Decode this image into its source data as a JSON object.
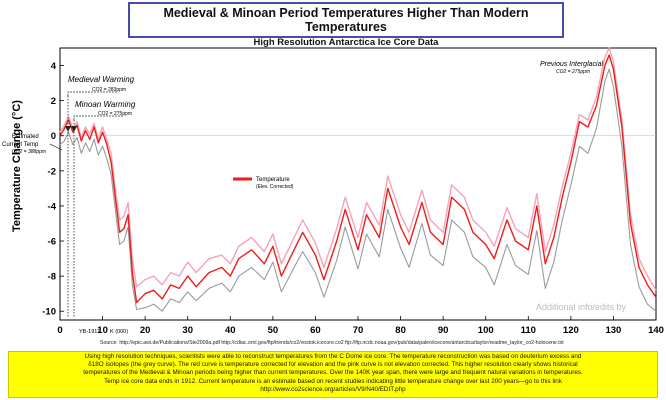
{
  "header": {
    "title": "Medieval & Minoan Period Temperatures Higher Than Modern Temperatures",
    "subtitle": "High Resolution Antarctica Ice Core Data"
  },
  "annotations": {
    "medieval_label": "Medieval Warming",
    "medieval_co2": "CO2 = 283ppm",
    "minoan_label": "Minoan Warming",
    "minoan_co2": "CO2 = 275ppm",
    "estimated_line1": "Estimated",
    "estimated_line2": "Current Temp",
    "estimated_co2": "CO2 = 388ppm",
    "interglacial_label": "Previous Interglacial",
    "interglacial_co2": "CO2 = 275ppm",
    "year_1912": "YB-1912",
    "x_unit": "K (000)"
  },
  "source_text": "Source: http://epic.awi.de/Publications/Ste2009a.pdf   http://cdiac.ornl.gov/ftp/trends/co2/vostok.icecore.co2   ftp://ftp.ncdc.noaa.gov/pub/data/paleo/icecore/antarctica/taylor/readme_taylor_co2-holocene.txt",
  "watermark": "Additional info/edits by",
  "caption": {
    "line1": "Using high resolution techniques, scientists were able to reconstruct temperatures from the C Dome ice core. The temperature reconstruction was based on deuterium excess and",
    "line2": "δ18O isotopes (the grey curve). The red curve is temperature corrected for elevation and the pink curve is not elevation corrected. This higher resolution clearly shows historical",
    "line3": "temperatures of the Medieval & Minoan periods being higher than current temperatures. Over the 140K year span, there were large and frequent natural variations in temperatures.",
    "line4": "Temp ice core data ends in 1912. Current temperature is an estimate based on recent studies indicating little temperature change over last 200 years—go to this link",
    "line5": "http://www.co2science.org/articles/V9/N40/EDIT.php"
  },
  "colors": {
    "red": "#ee1c1c",
    "pink": "#f5a3b8",
    "grey": "#9a9a9a"
  },
  "chart_data": {
    "type": "line",
    "title": "",
    "xlabel": "",
    "ylabel": "Temperature Change (°C)",
    "xlim": [
      0,
      140
    ],
    "ylim": [
      -10.5,
      5
    ],
    "xticks": [
      0,
      10,
      20,
      30,
      40,
      50,
      60,
      70,
      80,
      90,
      100,
      110,
      120,
      130,
      140
    ],
    "yticks": [
      4,
      2,
      0,
      -2,
      -4,
      -6,
      -8,
      -10
    ],
    "grid": false,
    "legend": {
      "position": "center-left",
      "entries": [
        {
          "label": "Temperature",
          "sub": "(Elev. Corrected)",
          "color": "#ee1c1c"
        }
      ]
    },
    "series": [
      {
        "name": "Temperature",
        "role": "red",
        "x": [
          0,
          1,
          2,
          3,
          4,
          5,
          6,
          7,
          8,
          9,
          10,
          11,
          12,
          13,
          14,
          15,
          16,
          17,
          18,
          20,
          22,
          24,
          26,
          28,
          30,
          32,
          35,
          38,
          40,
          42,
          45,
          48,
          50,
          52,
          55,
          57,
          60,
          62,
          65,
          67,
          70,
          72,
          75,
          77,
          80,
          82,
          85,
          87,
          90,
          92,
          95,
          97,
          100,
          102,
          105,
          107,
          110,
          112,
          114,
          116,
          118,
          120,
          122,
          124,
          126,
          128,
          129,
          130,
          132,
          134,
          136,
          138,
          140
        ],
        "y": [
          0,
          0.4,
          0.9,
          0.2,
          0.6,
          -0.3,
          0.3,
          -0.2,
          0.5,
          -0.4,
          0.2,
          -0.5,
          -1.5,
          -3.5,
          -5.5,
          -5.3,
          -4.5,
          -7.8,
          -9.5,
          -9.0,
          -8.8,
          -9.3,
          -8.5,
          -8.7,
          -8.0,
          -8.6,
          -7.8,
          -7.5,
          -8.0,
          -7.0,
          -6.5,
          -7.3,
          -6.3,
          -8.0,
          -6.5,
          -5.5,
          -6.8,
          -8.2,
          -6.0,
          -4.2,
          -6.5,
          -4.5,
          -5.8,
          -3.0,
          -5.2,
          -6.2,
          -3.8,
          -5.5,
          -6.2,
          -3.5,
          -4.2,
          -5.5,
          -6.2,
          -7.0,
          -4.8,
          -6.0,
          -6.5,
          -4.0,
          -7.3,
          -5.8,
          -3.5,
          -1.5,
          0.8,
          0.5,
          1.7,
          4.0,
          4.6,
          3.8,
          0.5,
          -5.0,
          -7.5,
          -8.5,
          -9.2
        ]
      },
      {
        "name": "",
        "role": "pink",
        "x": [
          0,
          1,
          2,
          3,
          4,
          5,
          6,
          7,
          8,
          9,
          10,
          11,
          12,
          13,
          14,
          15,
          16,
          17,
          18,
          20,
          22,
          24,
          26,
          28,
          30,
          32,
          35,
          38,
          40,
          42,
          45,
          48,
          50,
          52,
          55,
          57,
          60,
          62,
          65,
          67,
          70,
          72,
          75,
          77,
          80,
          82,
          85,
          87,
          90,
          92,
          95,
          97,
          100,
          102,
          105,
          107,
          110,
          112,
          114,
          116,
          118,
          120,
          122,
          124,
          126,
          128,
          129,
          130,
          132,
          134,
          136,
          138,
          140
        ],
        "y": [
          0.2,
          0.6,
          1.1,
          0.4,
          0.8,
          -0.1,
          0.5,
          0.1,
          0.7,
          -0.2,
          0.5,
          -0.2,
          -1.0,
          -3.0,
          -4.8,
          -4.6,
          -3.8,
          -7.0,
          -8.6,
          -8.2,
          -8.0,
          -8.5,
          -7.8,
          -8.0,
          -7.2,
          -7.8,
          -7.0,
          -6.8,
          -7.3,
          -6.3,
          -5.8,
          -6.6,
          -5.6,
          -7.3,
          -5.8,
          -4.8,
          -6.1,
          -7.5,
          -5.3,
          -3.5,
          -5.8,
          -3.8,
          -5.1,
          -2.3,
          -4.5,
          -5.5,
          -3.1,
          -4.8,
          -5.5,
          -2.8,
          -3.5,
          -4.8,
          -5.5,
          -6.3,
          -4.1,
          -5.3,
          -5.8,
          -3.3,
          -6.6,
          -5.1,
          -2.9,
          -1.0,
          1.2,
          0.9,
          2.2,
          4.5,
          5.0,
          4.2,
          0.9,
          -4.5,
          -7.0,
          -8.0,
          -8.8
        ]
      },
      {
        "name": "",
        "role": "grey",
        "x": [
          0,
          1,
          2,
          3,
          4,
          5,
          6,
          7,
          8,
          9,
          10,
          11,
          12,
          13,
          14,
          15,
          16,
          17,
          18,
          20,
          22,
          24,
          26,
          28,
          30,
          32,
          35,
          38,
          40,
          42,
          45,
          48,
          50,
          52,
          55,
          57,
          60,
          62,
          65,
          67,
          70,
          72,
          75,
          77,
          80,
          82,
          85,
          87,
          90,
          92,
          95,
          97,
          100,
          102,
          105,
          107,
          110,
          112,
          114,
          116,
          118,
          120,
          122,
          124,
          126,
          128,
          129,
          130,
          132,
          134,
          136,
          138,
          140
        ],
        "y": [
          -0.5,
          -0.3,
          0.2,
          -0.5,
          -0.1,
          -1.0,
          -0.4,
          -0.9,
          -0.2,
          -1.1,
          -0.6,
          -1.3,
          -2.2,
          -4.2,
          -6.2,
          -6.0,
          -5.2,
          -8.5,
          -9.9,
          -9.8,
          -9.6,
          -10.0,
          -9.3,
          -9.5,
          -8.9,
          -9.4,
          -8.7,
          -8.4,
          -8.9,
          -8.0,
          -7.5,
          -8.2,
          -7.2,
          -8.9,
          -7.5,
          -6.6,
          -7.8,
          -9.2,
          -7.1,
          -5.2,
          -7.6,
          -5.6,
          -6.9,
          -4.2,
          -6.4,
          -7.5,
          -5.0,
          -6.8,
          -7.4,
          -4.8,
          -5.5,
          -6.9,
          -7.5,
          -8.5,
          -6.2,
          -7.4,
          -7.9,
          -5.4,
          -8.7,
          -7.2,
          -4.8,
          -2.8,
          -0.6,
          -1.0,
          0.4,
          3.1,
          3.8,
          2.8,
          -0.6,
          -6.2,
          -8.6,
          -9.6,
          -10.0
        ]
      }
    ]
  }
}
